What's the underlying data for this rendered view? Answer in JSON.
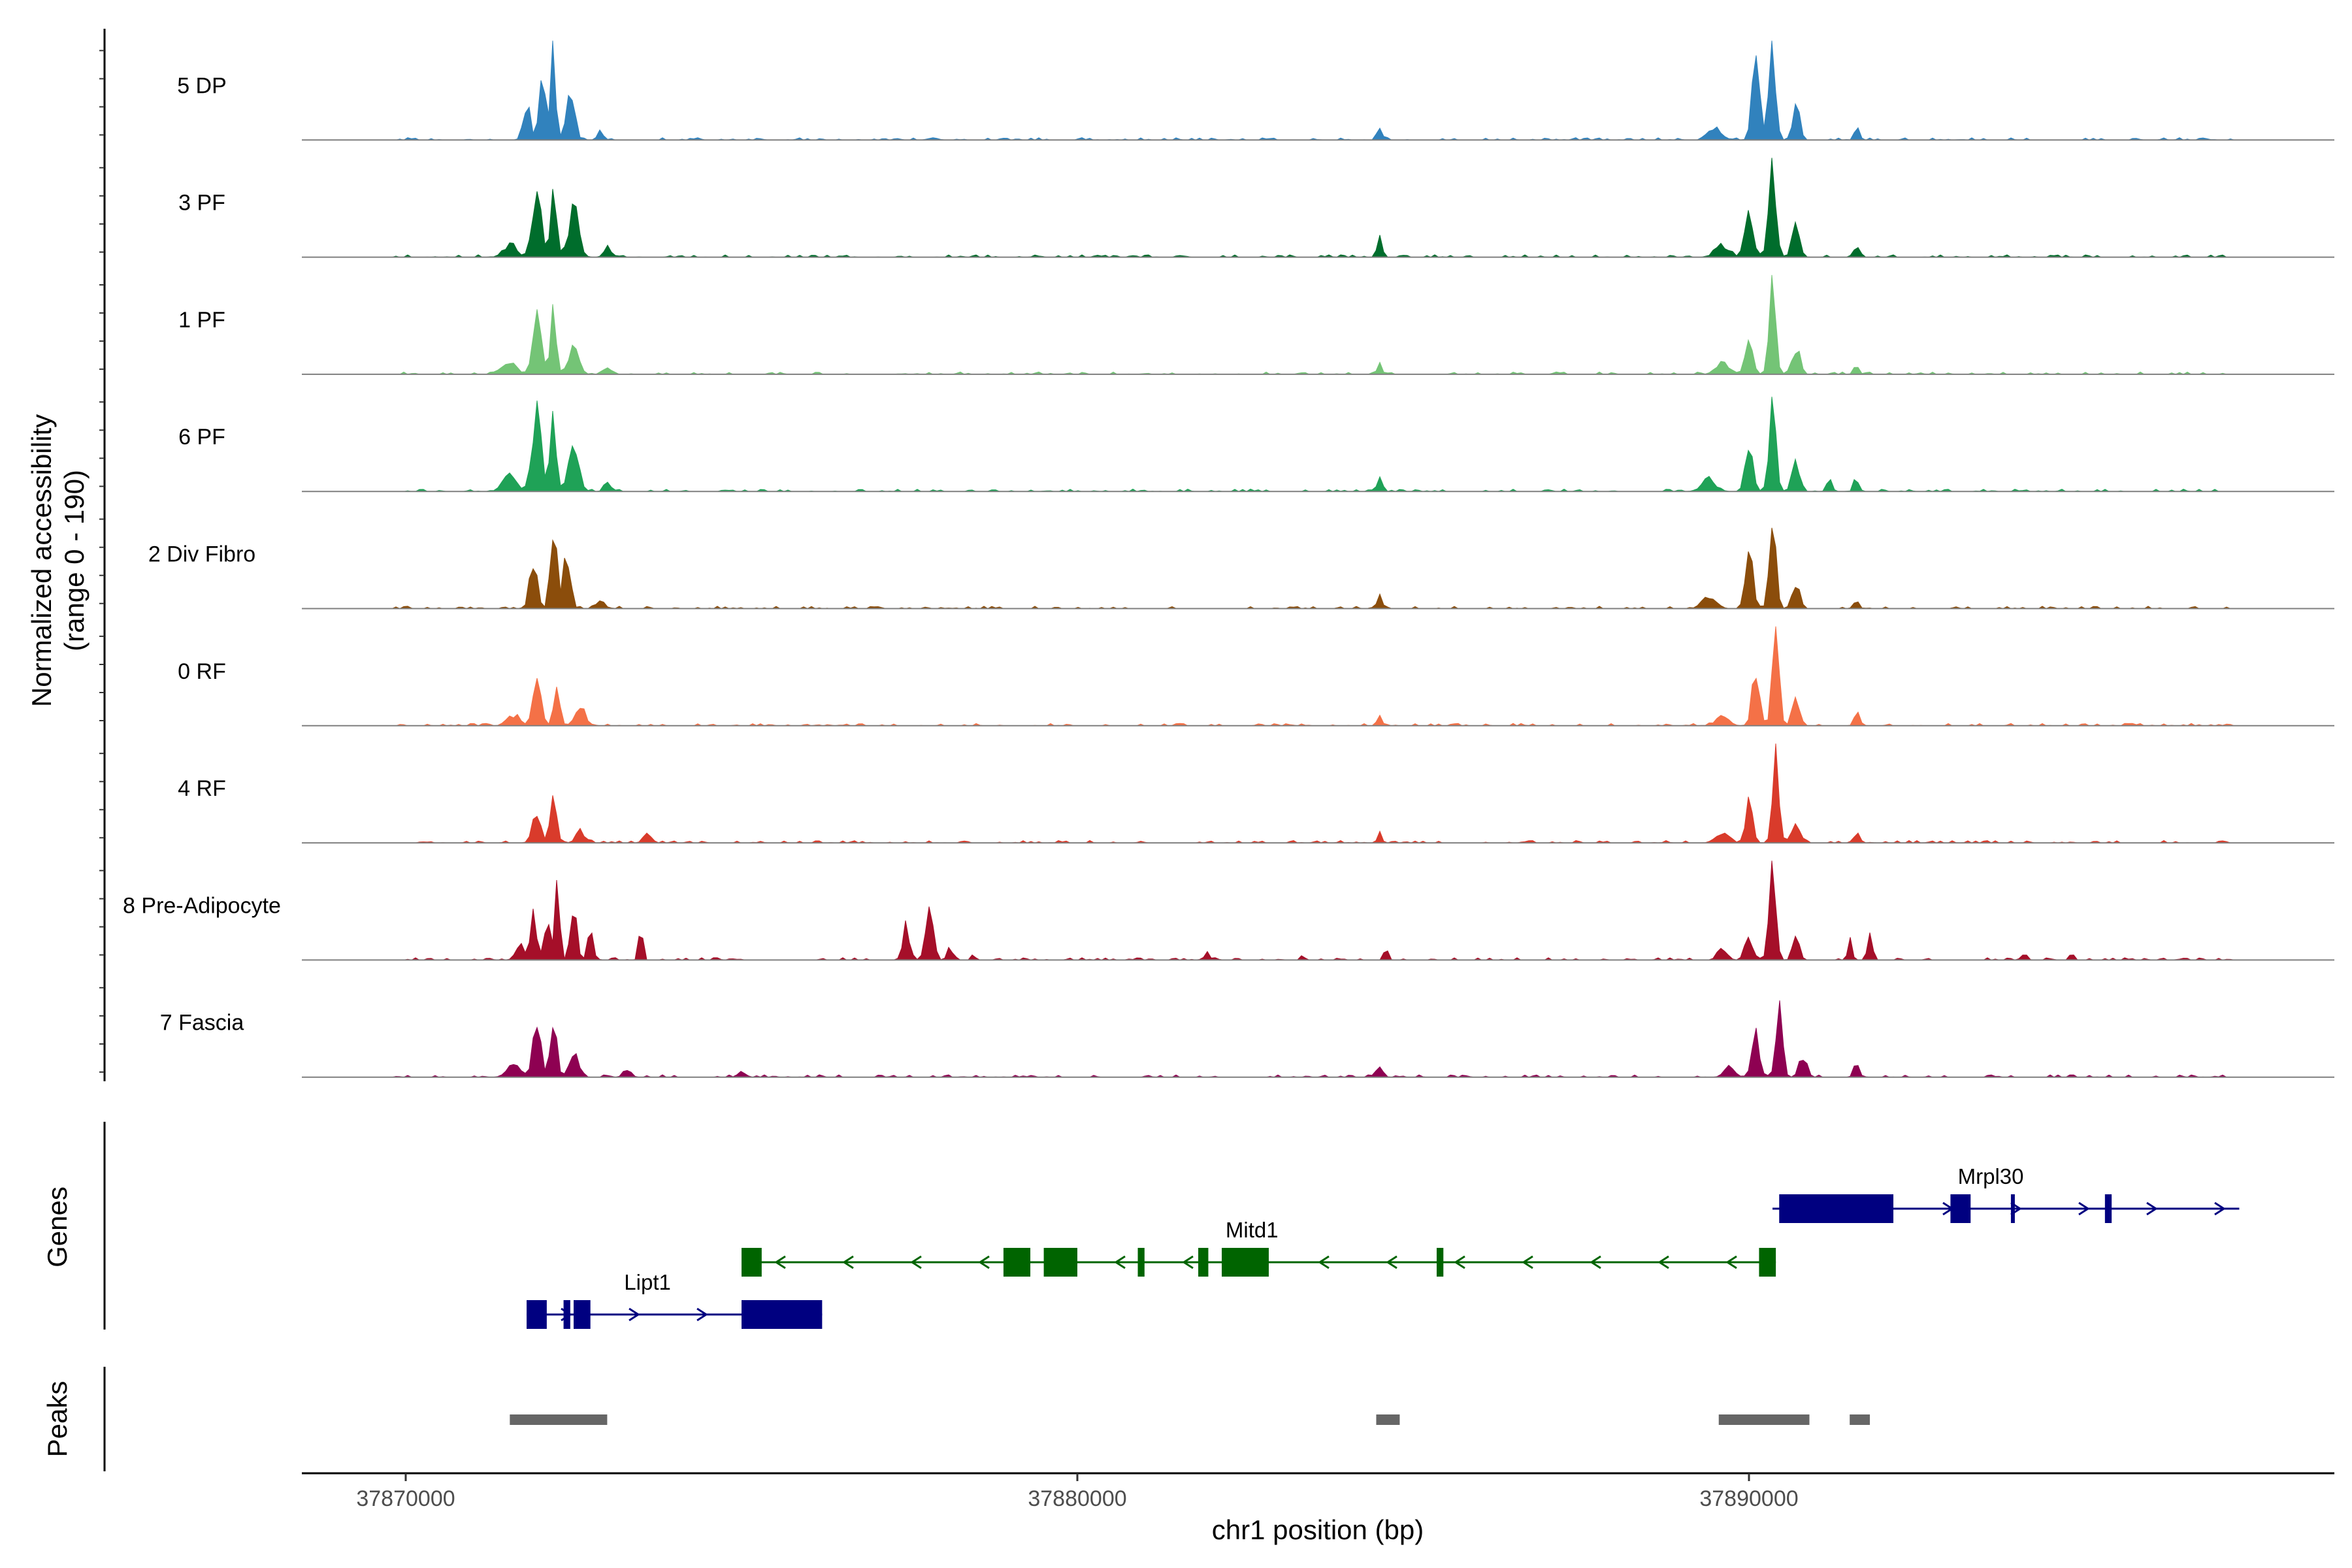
{
  "chart_data": {
    "type": "area",
    "title": "",
    "region": "chr1",
    "xlabel": "chr1 position (bp)",
    "ylabel_line1": "Normalized accessibility",
    "ylabel_line2": "(range 0 - 190)",
    "y_range": [
      0,
      190
    ],
    "x_range": [
      37868500,
      37898800
    ],
    "x_ticks": [
      37870000,
      37880000,
      37890000
    ],
    "x_tick_labels": [
      "37870000",
      "37880000",
      "37890000"
    ],
    "tracks": [
      {
        "name": "5 DP",
        "color": "#3182bd",
        "peaks": [
          [
            37871800,
            0.36,
            110
          ],
          [
            37872050,
            0.6,
            120
          ],
          [
            37872200,
            1.0,
            70
          ],
          [
            37872450,
            0.55,
            130
          ],
          [
            37872900,
            0.12,
            80
          ],
          [
            37884500,
            0.13,
            80
          ],
          [
            37889500,
            0.12,
            200
          ],
          [
            37890100,
            0.72,
            120
          ],
          [
            37890350,
            1.0,
            100
          ],
          [
            37890700,
            0.33,
            110
          ],
          [
            37891600,
            0.14,
            70
          ]
        ]
      },
      {
        "name": "3 PF",
        "color": "#006d2c",
        "peaks": [
          [
            37871550,
            0.12,
            200
          ],
          [
            37871950,
            0.62,
            140
          ],
          [
            37872200,
            0.7,
            90
          ],
          [
            37872500,
            0.45,
            160
          ],
          [
            37873000,
            0.1,
            100
          ],
          [
            37884500,
            0.18,
            80
          ],
          [
            37889600,
            0.12,
            200
          ],
          [
            37890000,
            0.5,
            120
          ],
          [
            37890350,
            0.95,
            110
          ],
          [
            37890700,
            0.3,
            120
          ],
          [
            37891600,
            0.12,
            80
          ]
        ]
      },
      {
        "name": "1 PF",
        "color": "#74c476",
        "peaks": [
          [
            37871550,
            0.12,
            200
          ],
          [
            37871950,
            0.55,
            140
          ],
          [
            37872200,
            0.62,
            90
          ],
          [
            37872500,
            0.3,
            160
          ],
          [
            37873000,
            0.08,
            100
          ],
          [
            37884500,
            0.1,
            80
          ],
          [
            37889600,
            0.1,
            200
          ],
          [
            37890000,
            0.3,
            120
          ],
          [
            37890350,
            0.9,
            100
          ],
          [
            37890700,
            0.25,
            120
          ],
          [
            37891600,
            0.1,
            80
          ]
        ]
      },
      {
        "name": "6 PF",
        "color": "#1fa257",
        "peaks": [
          [
            37871550,
            0.15,
            220
          ],
          [
            37871950,
            0.75,
            140
          ],
          [
            37872200,
            0.8,
            90
          ],
          [
            37872500,
            0.45,
            160
          ],
          [
            37873000,
            0.1,
            100
          ],
          [
            37884500,
            0.14,
            80
          ],
          [
            37889400,
            0.12,
            220
          ],
          [
            37890000,
            0.45,
            120
          ],
          [
            37890350,
            0.82,
            110
          ],
          [
            37890700,
            0.3,
            120
          ],
          [
            37891200,
            0.12,
            80
          ],
          [
            37891600,
            0.12,
            80
          ]
        ]
      },
      {
        "name": "2 Div Fibro",
        "color": "#8b4d0b",
        "peaks": [
          [
            37871900,
            0.45,
            120
          ],
          [
            37872200,
            0.92,
            90
          ],
          [
            37872400,
            0.6,
            110
          ],
          [
            37872900,
            0.08,
            120
          ],
          [
            37884500,
            0.14,
            80
          ],
          [
            37889400,
            0.12,
            200
          ],
          [
            37890000,
            0.55,
            120
          ],
          [
            37890350,
            1.0,
            100
          ],
          [
            37890700,
            0.25,
            120
          ],
          [
            37891600,
            0.08,
            80
          ]
        ]
      },
      {
        "name": "0 RF",
        "color": "#f47147",
        "peaks": [
          [
            37871600,
            0.1,
            200
          ],
          [
            37871950,
            0.45,
            130
          ],
          [
            37872250,
            0.5,
            90
          ],
          [
            37872600,
            0.2,
            160
          ],
          [
            37884500,
            0.08,
            80
          ],
          [
            37889600,
            0.1,
            200
          ],
          [
            37890100,
            0.5,
            120
          ],
          [
            37890400,
            0.95,
            100
          ],
          [
            37890700,
            0.25,
            120
          ],
          [
            37891600,
            0.14,
            80
          ]
        ]
      },
      {
        "name": "4 RF",
        "color": "#d93b2b",
        "peaks": [
          [
            37871950,
            0.3,
            130
          ],
          [
            37872200,
            0.55,
            90
          ],
          [
            37872600,
            0.12,
            140
          ],
          [
            37873600,
            0.1,
            120
          ],
          [
            37884500,
            0.08,
            80
          ],
          [
            37889600,
            0.1,
            200
          ],
          [
            37890000,
            0.45,
            110
          ],
          [
            37890400,
            0.9,
            100
          ],
          [
            37890700,
            0.2,
            120
          ],
          [
            37891600,
            0.1,
            80
          ]
        ]
      },
      {
        "name": "8 Pre-Adipocyte",
        "color": "#a50f29",
        "peaks": [
          [
            37871700,
            0.2,
            100
          ],
          [
            37871900,
            0.45,
            100
          ],
          [
            37872100,
            0.4,
            80
          ],
          [
            37872250,
            1.0,
            70
          ],
          [
            37872500,
            0.65,
            90
          ],
          [
            37872750,
            0.3,
            90
          ],
          [
            37873500,
            0.4,
            60
          ],
          [
            37877450,
            0.35,
            110
          ],
          [
            37877800,
            0.5,
            110
          ],
          [
            37878100,
            0.15,
            80
          ],
          [
            37878450,
            0.06,
            60
          ],
          [
            37881950,
            0.08,
            60
          ],
          [
            37883350,
            0.06,
            60
          ],
          [
            37884600,
            0.15,
            60
          ],
          [
            37889600,
            0.1,
            150
          ],
          [
            37890000,
            0.25,
            120
          ],
          [
            37890350,
            1.0,
            100
          ],
          [
            37890700,
            0.25,
            100
          ],
          [
            37891500,
            0.2,
            60
          ],
          [
            37891800,
            0.25,
            80
          ],
          [
            37894100,
            0.08,
            80
          ],
          [
            37894800,
            0.07,
            60
          ]
        ]
      },
      {
        "name": "7 Fascia",
        "color": "#8e0152",
        "peaks": [
          [
            37871600,
            0.12,
            200
          ],
          [
            37871950,
            0.55,
            120
          ],
          [
            37872200,
            0.55,
            100
          ],
          [
            37872500,
            0.25,
            140
          ],
          [
            37873300,
            0.08,
            120
          ],
          [
            37875000,
            0.06,
            120
          ],
          [
            37884500,
            0.1,
            100
          ],
          [
            37889700,
            0.12,
            150
          ],
          [
            37890100,
            0.45,
            120
          ],
          [
            37890450,
            0.75,
            100
          ],
          [
            37890800,
            0.2,
            120
          ],
          [
            37891600,
            0.15,
            80
          ]
        ]
      }
    ],
    "genes": [
      {
        "name": "Lipt1",
        "strand": "+",
        "color": "#000080",
        "start": 37871800,
        "end": 37876200,
        "label_pos": 37873600,
        "exons": [
          [
            37871800,
            37872100,
            "large"
          ],
          [
            37872350,
            37872450,
            "large"
          ],
          [
            37872500,
            37872750,
            "large"
          ],
          [
            37875000,
            37876200,
            "large"
          ]
        ]
      },
      {
        "name": "Mitd1",
        "strand": "-",
        "color": "#006400",
        "start": 37875000,
        "end": 37890400,
        "label_pos": 37882600,
        "exons": [
          [
            37875000,
            37875300,
            "large"
          ],
          [
            37878900,
            37879300,
            "large"
          ],
          [
            37879500,
            37880000,
            "large"
          ],
          [
            37880900,
            37881000,
            "large"
          ],
          [
            37881800,
            37881950,
            "large"
          ],
          [
            37882150,
            37882850,
            "large"
          ],
          [
            37885350,
            37885450,
            "large"
          ],
          [
            37890150,
            37890400,
            "large"
          ]
        ]
      },
      {
        "name": "Mrpl30",
        "strand": "+",
        "color": "#000080",
        "start": 37890350,
        "end": 37897300,
        "label_pos": 37893600,
        "exons": [
          [
            37890450,
            37892150,
            "large"
          ],
          [
            37893000,
            37893300,
            "large"
          ],
          [
            37893900,
            37893950,
            "large"
          ],
          [
            37895300,
            37895400,
            "large"
          ]
        ]
      }
    ],
    "peaks_track": [
      [
        37871550,
        37873000
      ],
      [
        37884450,
        37884800
      ],
      [
        37889550,
        37890900
      ],
      [
        37891500,
        37891800
      ]
    ],
    "panel_labels": {
      "genes": "Genes",
      "peaks": "Peaks"
    }
  }
}
